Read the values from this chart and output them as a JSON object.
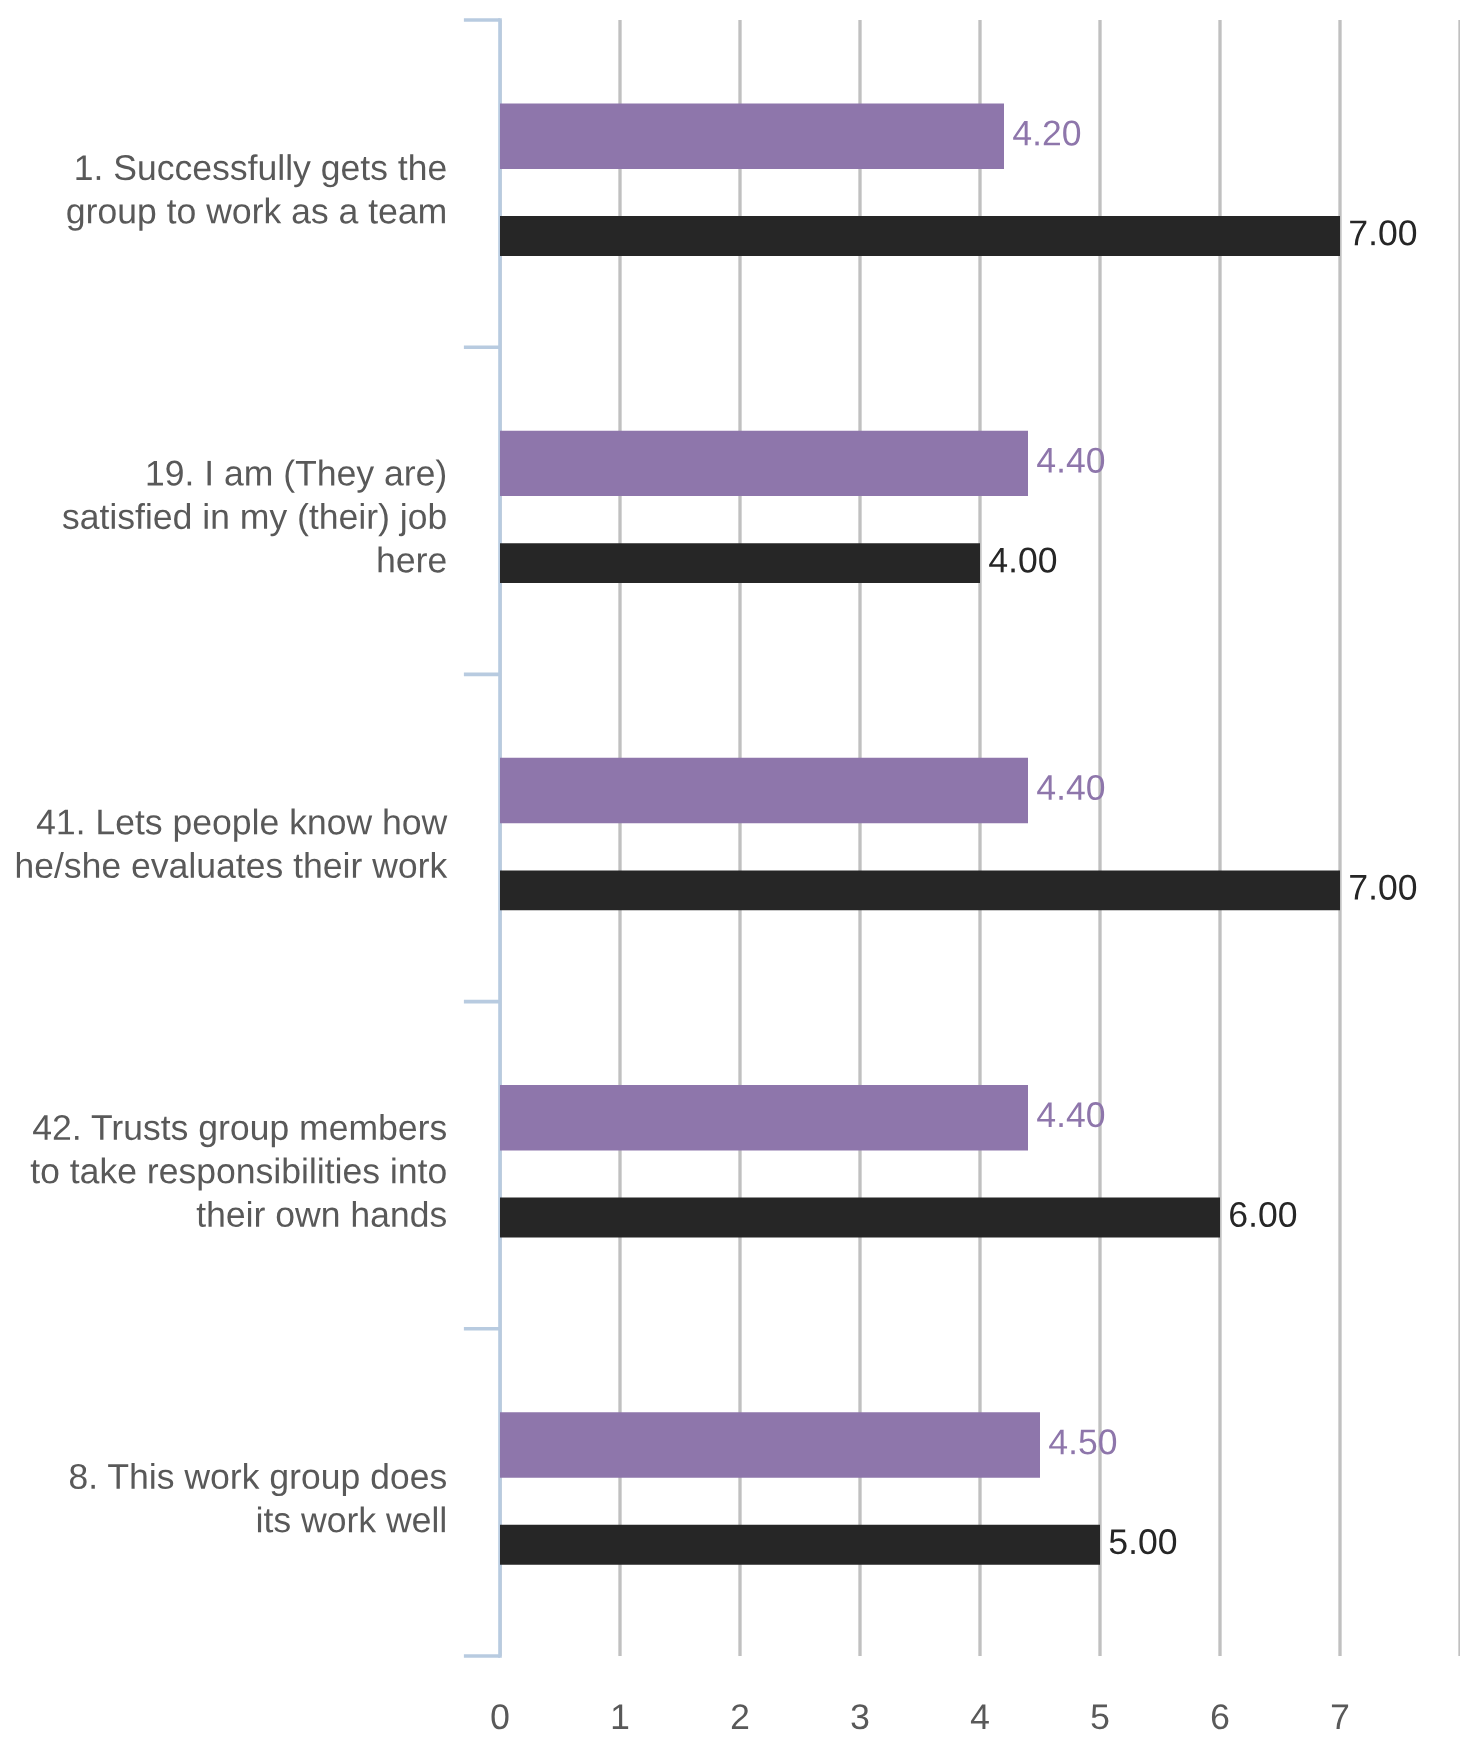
{
  "chart_data": {
    "type": "bar",
    "orientation": "horizontal",
    "categories": [
      "1. Successfully gets the\ngroup to work as a team",
      "19. I am (They are)\nsatisfied in my (their) job\nhere",
      "41. Lets people know how\nhe/she evaluates their work",
      "42. Trusts group members\nto take responsibilities into\ntheir own hands",
      "8. This work group does\nits work well"
    ],
    "series": [
      {
        "color": "#8e76ab",
        "values": [
          4.2,
          4.4,
          4.4,
          4.4,
          4.5
        ],
        "value_labels": [
          "4.20",
          "4.40",
          "4.40",
          "4.40",
          "4.50"
        ]
      },
      {
        "color": "#262626",
        "values": [
          7,
          4,
          7,
          6,
          5
        ],
        "value_labels": [
          "7.00",
          "4.00",
          "7.00",
          "6.00",
          "5.00"
        ]
      }
    ],
    "xlim": [
      0,
      8
    ],
    "xticks": [
      0,
      1,
      2,
      3,
      4,
      5,
      6,
      7,
      {
        "value": 8,
        "label": null
      }
    ],
    "grid": "x"
  }
}
